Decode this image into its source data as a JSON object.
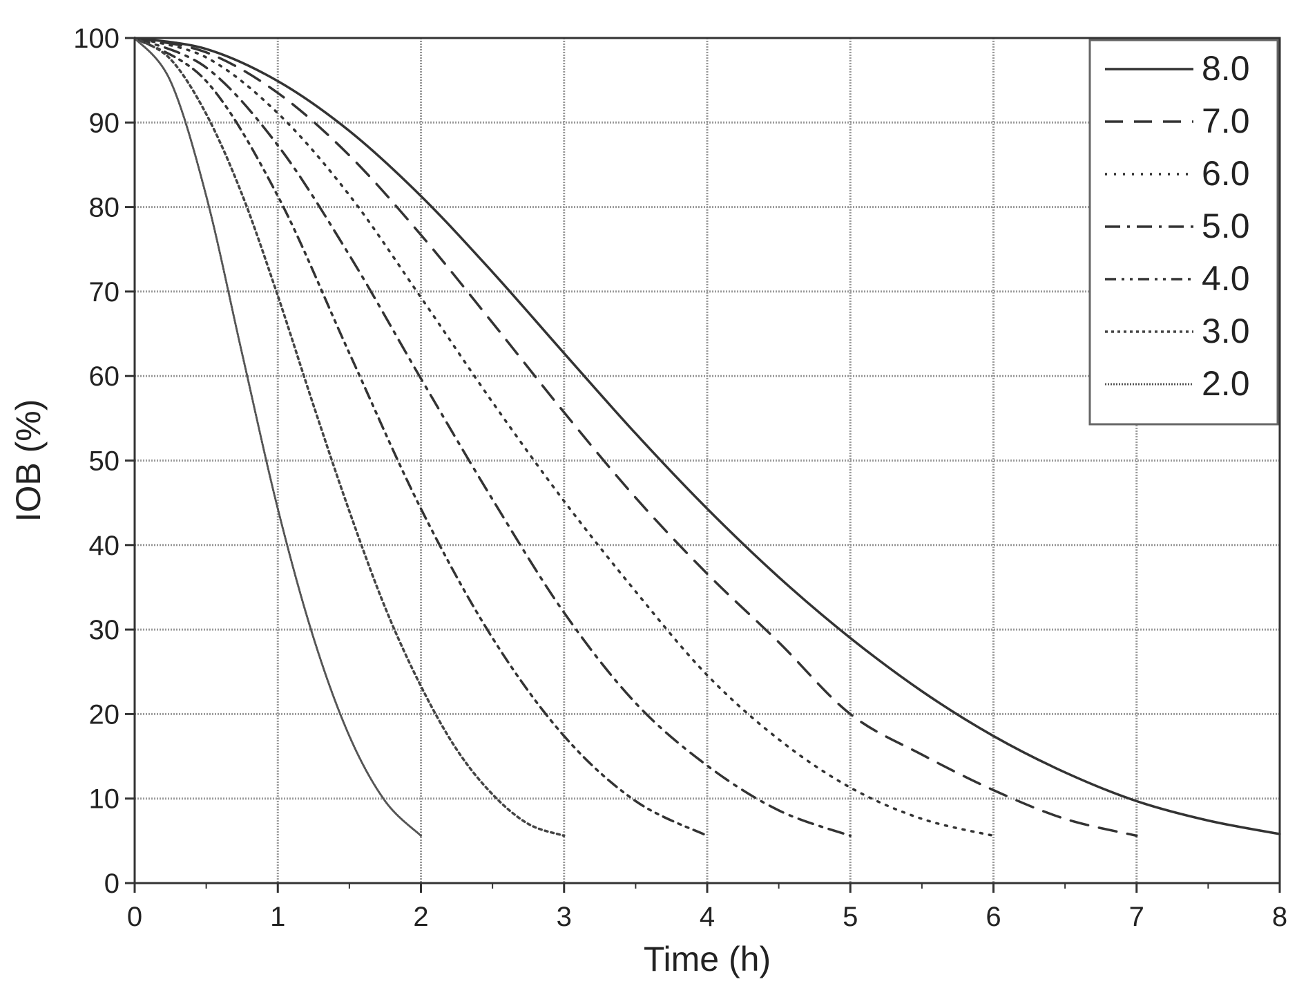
{
  "chart_data": {
    "type": "line",
    "title": "",
    "xlabel": "Time (h)",
    "ylabel": "IOB (%)",
    "xlim": [
      0,
      8
    ],
    "ylim": [
      0,
      100
    ],
    "x_ticks": [
      "0",
      "1",
      "2",
      "3",
      "4",
      "5",
      "6",
      "7",
      "8"
    ],
    "y_ticks": [
      "0",
      "10",
      "20",
      "30",
      "40",
      "50",
      "60",
      "70",
      "80",
      "90",
      "100"
    ],
    "grid": true,
    "legend_position": "top-right",
    "series": [
      {
        "name": "8.0",
        "dash": "solid",
        "x": [
          0,
          0.5,
          1,
          1.5,
          2,
          2.5,
          3,
          3.5,
          4,
          4.5,
          5,
          5.5,
          6,
          6.5,
          7,
          7.5,
          8
        ],
        "y": [
          100,
          98.7,
          94.9,
          89.0,
          81.3,
          72.3,
          62.7,
          53.2,
          44.3,
          36.2,
          29.0,
          22.7,
          17.4,
          13.1,
          9.7,
          7.4,
          5.8
        ]
      },
      {
        "name": "7.0",
        "dash": "dash",
        "x": [
          0,
          0.5,
          1,
          1.5,
          2,
          2.5,
          3,
          3.5,
          4,
          4.5,
          5,
          5.5,
          6,
          6.5,
          7
        ],
        "y": [
          100,
          98.3,
          93.5,
          86.1,
          76.7,
          66.3,
          55.7,
          45.6,
          36.6,
          28.5,
          20.0,
          15.2,
          11.0,
          7.6,
          5.6
        ]
      },
      {
        "name": "6.0",
        "dash": "dot",
        "x": [
          0,
          0.5,
          1,
          1.5,
          2,
          2.5,
          3,
          3.5,
          4,
          4.5,
          5,
          5.5,
          6
        ],
        "y": [
          100,
          97.7,
          91.1,
          81.4,
          69.3,
          56.9,
          45.2,
          34.5,
          24.6,
          17.0,
          11.3,
          7.6,
          5.6
        ]
      },
      {
        "name": "5.0",
        "dash": "dashdot",
        "x": [
          0,
          0.5,
          1,
          1.5,
          2,
          2.5,
          3,
          3.5,
          4,
          4.5,
          5
        ],
        "y": [
          100,
          96.5,
          87.3,
          74.3,
          59.7,
          45.4,
          32.0,
          21.3,
          13.9,
          8.6,
          5.6
        ]
      },
      {
        "name": "4.0",
        "dash": "dashdotdot",
        "x": [
          0,
          0.5,
          1,
          1.5,
          2,
          2.5,
          3,
          3.5,
          4
        ],
        "y": [
          100,
          94.9,
          81.3,
          62.7,
          44.3,
          29.0,
          17.4,
          9.7,
          5.6
        ]
      },
      {
        "name": "3.0",
        "dash": "densedot",
        "x": [
          0,
          0.25,
          0.5,
          0.75,
          1,
          1.25,
          1.5,
          1.75,
          2,
          2.25,
          2.5,
          2.75,
          3
        ],
        "y": [
          100,
          97.5,
          91.0,
          81.5,
          69.5,
          56.5,
          44.0,
          32.6,
          23.3,
          15.8,
          10.5,
          7.0,
          5.6
        ]
      },
      {
        "name": "2.0",
        "dash": "finesolid",
        "x": [
          0,
          0.25,
          0.5,
          0.75,
          1,
          1.25,
          1.5,
          1.75,
          2
        ],
        "y": [
          100,
          94.9,
          81.3,
          62.7,
          44.3,
          29.0,
          17.4,
          9.7,
          5.6
        ]
      }
    ]
  }
}
